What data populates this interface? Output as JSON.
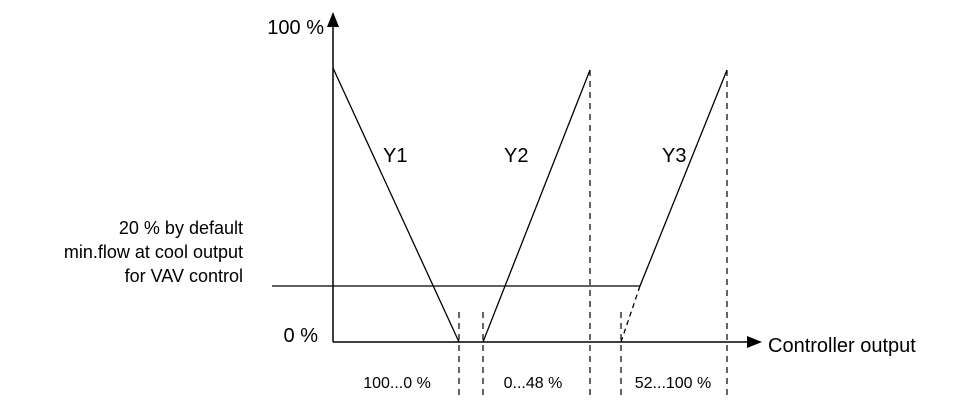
{
  "y_axis": {
    "max_label": "100 %",
    "min_label": "0 %"
  },
  "x_axis": {
    "label": "Controller output"
  },
  "curves": [
    {
      "name": "Y1"
    },
    {
      "name": "Y2"
    },
    {
      "name": "Y3"
    }
  ],
  "min_flow_note": {
    "line1": "20 % by default",
    "line2": "min.flow at cool output",
    "line3": "for VAV control"
  },
  "ranges": [
    {
      "label": "100...0 %"
    },
    {
      "label": "0...48 %"
    },
    {
      "label": "52...100 %"
    }
  ],
  "colors": {
    "ink": "#000000",
    "background": "#ffffff"
  }
}
